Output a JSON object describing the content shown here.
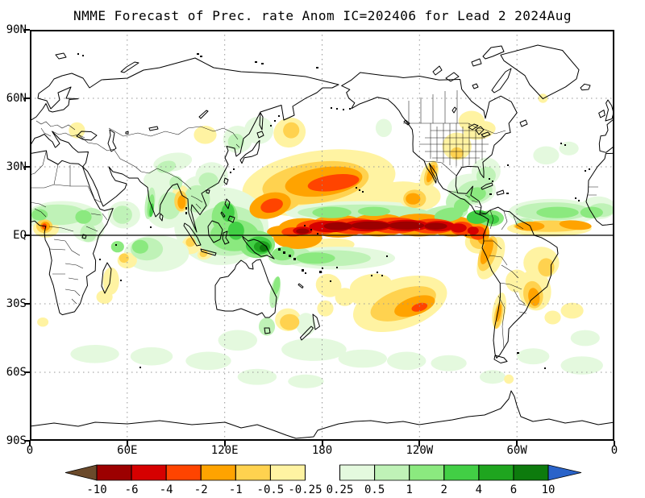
{
  "title": "NMME Forecast of Prec. rate Anom IC=202406 for Lead 2 2024Aug",
  "axes": {
    "lat_labels": [
      "90N",
      "60N",
      "30N",
      "EQ",
      "30S",
      "60S",
      "90S"
    ],
    "lon_labels": [
      "0",
      "60E",
      "120E",
      "180",
      "120W",
      "60W",
      "0"
    ]
  },
  "palette": {
    "y1": "#FFF3A2",
    "y2": "#FFD24F",
    "o1": "#FFA300",
    "o2": "#FF4400",
    "r1": "#D60000",
    "r2": "#9C0000",
    "g1": "#E4F9DE",
    "g2": "#BFF2B7",
    "g3": "#8BE97F",
    "g4": "#42CF45",
    "g5": "#1FA51F",
    "g6": "#0D7B0D"
  },
  "colorbar": {
    "tick_labels": [
      "-10",
      "-6",
      "-4",
      "-2",
      "-1",
      "-0.5",
      "-0.25",
      "0.25",
      "0.5",
      "1",
      "2",
      "4",
      "6",
      "10"
    ],
    "segment_colors": [
      "#9C0000",
      "#D60000",
      "#FF4400",
      "#FFA300",
      "#FFD24F",
      "#FFF3A2",
      "#FFFFFF",
      "#E4F9DE",
      "#BFF2B7",
      "#8BE97F",
      "#42CF45",
      "#1FA51F",
      "#0D7B0D"
    ],
    "left_arrow_color": "#6B4A2B",
    "right_arrow_color": "#2A63C9"
  },
  "chart_data": {
    "type": "heatmap",
    "title": "NMME Forecast of Prec. rate Anom IC=202406 for Lead 2 2024Aug",
    "variable": "Prec. rate Anom",
    "initial_condition": "202406",
    "lead": "2",
    "valid": "2024Aug",
    "projection": "equirectangular, longitude 0E to 360E (Pacific centered), latitude 90N to 90S",
    "x_ticks": [
      "0",
      "60E",
      "120E",
      "180",
      "120W",
      "60W",
      "0"
    ],
    "y_ticks": [
      "90N",
      "60N",
      "30N",
      "EQ",
      "30S",
      "60S",
      "90S"
    ],
    "levels": [
      -10,
      -6,
      -4,
      -2,
      -1,
      -0.5,
      -0.25,
      0.25,
      0.5,
      1,
      2,
      4,
      6,
      10
    ],
    "anomaly_features": [
      [
        "y1",
        178,
        23,
        95,
        28,
        -8
      ],
      [
        "y1",
        222,
        16,
        45,
        14,
        -12
      ],
      [
        "y2",
        176,
        23,
        66,
        18,
        -8
      ],
      [
        "y2",
        155,
        16,
        30,
        12,
        -20
      ],
      [
        "o1",
        181,
        23.5,
        48,
        12.5,
        -8
      ],
      [
        "o2",
        187,
        23,
        32,
        7,
        -8
      ],
      [
        "o1",
        148,
        13,
        26,
        11,
        -15
      ],
      [
        "o2",
        149,
        13,
        14,
        6,
        -15
      ],
      [
        "y1",
        160,
        45,
        20,
        13,
        -20
      ],
      [
        "y2",
        161,
        46,
        10,
        7,
        -20
      ],
      [
        "o1",
        155,
        1.5,
        18,
        5.5,
        0
      ],
      [
        "o1",
        165,
        -1,
        30,
        10,
        0
      ],
      [
        "o1",
        168,
        3,
        30,
        9,
        0
      ],
      [
        "o1",
        190,
        4,
        34,
        10,
        0
      ],
      [
        "o1",
        215,
        4.5,
        36,
        10,
        0
      ],
      [
        "o1",
        240,
        4.5,
        36,
        10,
        0
      ],
      [
        "o1",
        260,
        4,
        28,
        9,
        0
      ],
      [
        "o1",
        273,
        2.5,
        16,
        8,
        0
      ],
      [
        "o2",
        162,
        1.5,
        14,
        4,
        0
      ],
      [
        "o2",
        177,
        3.5,
        26,
        6.5,
        0
      ],
      [
        "o2",
        200,
        4,
        32,
        7,
        0
      ],
      [
        "o2",
        225,
        4.3,
        32,
        7,
        0
      ],
      [
        "o2",
        248,
        4,
        28,
        6.5,
        0
      ],
      [
        "o2",
        266,
        3,
        14,
        6,
        0
      ],
      [
        "r1",
        168,
        2,
        12,
        3.5,
        0
      ],
      [
        "r1",
        185,
        3.8,
        26,
        5,
        0
      ],
      [
        "r1",
        208,
        4.2,
        30,
        5,
        0
      ],
      [
        "r1",
        232,
        4.3,
        28,
        5,
        0
      ],
      [
        "r1",
        252,
        4,
        20,
        4.5,
        0
      ],
      [
        "r1",
        264,
        3.2,
        10,
        4,
        0
      ],
      [
        "r2",
        168,
        1.8,
        8,
        2.4,
        0
      ],
      [
        "r2",
        190,
        4,
        18,
        3.4,
        0
      ],
      [
        "r2",
        210,
        4.3,
        24,
        3.6,
        0
      ],
      [
        "r2",
        232,
        4.3,
        22,
        3.6,
        0
      ],
      [
        "r2",
        250,
        4,
        14,
        3,
        0
      ],
      [
        "o2",
        276,
        1,
        10,
        6,
        0
      ],
      [
        "o1",
        279,
        1,
        8,
        10,
        0
      ],
      [
        "r1",
        273,
        2,
        7,
        3.5,
        0
      ],
      [
        "y2",
        277,
        -2,
        12,
        8,
        0
      ],
      [
        "y1",
        276,
        -3,
        16,
        10,
        0
      ],
      [
        "y1",
        182,
        -5,
        36,
        7,
        -5
      ],
      [
        "y1",
        284,
        -10,
        14,
        20,
        25
      ],
      [
        "y2",
        282,
        -8,
        10,
        16,
        20
      ],
      [
        "o1",
        281.5,
        -7,
        6,
        12,
        20
      ],
      [
        "g1",
        205,
        10,
        95,
        10,
        0
      ],
      [
        "g2",
        205,
        10,
        80,
        7,
        0
      ],
      [
        "g3",
        186,
        10,
        24,
        5,
        0
      ],
      [
        "g3",
        212,
        10.5,
        20,
        4,
        0
      ],
      [
        "g2",
        255,
        9,
        30,
        8,
        -10
      ],
      [
        "g3",
        258,
        9,
        18,
        6,
        -10
      ],
      [
        "g4",
        276,
        8,
        14,
        6,
        -5
      ],
      [
        "g3",
        284,
        7.5,
        16,
        7,
        0
      ],
      [
        "g4",
        285,
        7,
        8,
        4,
        0
      ],
      [
        "g2",
        264,
        15,
        16,
        10,
        -30
      ],
      [
        "g3",
        266,
        13,
        10,
        6,
        -30
      ],
      [
        "g1",
        272,
        20,
        30,
        14,
        0
      ],
      [
        "g2",
        274,
        19,
        22,
        10,
        -10
      ],
      [
        "g3",
        275,
        18,
        12,
        6,
        -10
      ],
      [
        "g1",
        281,
        28,
        18,
        12,
        -20
      ],
      [
        "g2",
        281,
        26,
        12,
        8,
        -20
      ],
      [
        "y1",
        240,
        17,
        26,
        12,
        0
      ],
      [
        "y2",
        237,
        16,
        14,
        8,
        0
      ],
      [
        "o1",
        236,
        16,
        9,
        5,
        0
      ],
      [
        "y1",
        246,
        26,
        10,
        14,
        20
      ],
      [
        "y2",
        247,
        27,
        7,
        11,
        20
      ],
      [
        "o1",
        247,
        27,
        4,
        8,
        20
      ],
      [
        "g1",
        190,
        -10,
        70,
        10,
        0
      ],
      [
        "g2",
        186,
        -10,
        48,
        7,
        0
      ],
      [
        "g3",
        176,
        -10,
        24,
        5,
        0
      ],
      [
        "g2",
        160,
        -9,
        26,
        8,
        -5
      ],
      [
        "g3",
        156,
        -8,
        14,
        6,
        -5
      ],
      [
        "y1",
        228,
        -30,
        60,
        22,
        -18
      ],
      [
        "y2",
        230,
        -30,
        42,
        13,
        -18
      ],
      [
        "o1",
        237,
        -31,
        26,
        8,
        -18
      ],
      [
        "o2",
        240,
        -31.5,
        10,
        3.5,
        -15
      ],
      [
        "y1",
        210,
        -22,
        26,
        10,
        -10
      ],
      [
        "y1",
        184,
        -22,
        16,
        10,
        20
      ],
      [
        "y1",
        194,
        -27,
        12,
        8,
        0
      ],
      [
        "y1",
        205,
        -25,
        18,
        10,
        -20
      ],
      [
        "y1",
        182,
        -32,
        10,
        7,
        0
      ],
      [
        "y2",
        160,
        -38,
        12,
        7,
        0
      ],
      [
        "y1",
        159,
        -37,
        16,
        10,
        0
      ],
      [
        "g1",
        128,
        -46,
        24,
        9,
        0
      ],
      [
        "g1",
        175,
        -50,
        40,
        10,
        0
      ],
      [
        "g1",
        205,
        -54,
        30,
        8,
        0
      ],
      [
        "g1",
        232,
        -55,
        24,
        8,
        0
      ],
      [
        "g1",
        258,
        -56,
        22,
        7,
        0
      ],
      [
        "g1",
        285,
        -62,
        16,
        6,
        0
      ],
      [
        "y1",
        295,
        -63,
        6,
        4,
        0
      ],
      [
        "g1",
        310,
        -53,
        20,
        7,
        0
      ],
      [
        "g1",
        340,
        -57,
        26,
        8,
        0
      ],
      [
        "g1",
        342,
        -45,
        18,
        7,
        0
      ],
      [
        "g1",
        40,
        -52,
        30,
        8,
        0
      ],
      [
        "g1",
        75,
        -53,
        26,
        8,
        0
      ],
      [
        "g1",
        110,
        -55,
        28,
        8,
        0
      ],
      [
        "g1",
        140,
        -62,
        24,
        7,
        0
      ],
      [
        "g1",
        170,
        -64,
        22,
        6,
        0
      ],
      [
        "g1",
        170,
        -39,
        12,
        10,
        0
      ],
      [
        "g2",
        146,
        -40,
        10,
        8,
        0
      ],
      [
        "g2",
        151,
        -25,
        6,
        14,
        10
      ],
      [
        "g3",
        152,
        -22,
        4,
        8,
        10
      ],
      [
        "g1",
        118,
        4,
        58,
        34,
        0
      ],
      [
        "g2",
        122,
        2,
        44,
        22,
        0
      ],
      [
        "g3",
        126,
        0,
        30,
        14,
        0
      ],
      [
        "g3",
        120,
        8,
        16,
        14,
        0
      ],
      [
        "g4",
        122,
        10,
        8,
        8,
        0
      ],
      [
        "g4",
        127,
        2,
        10,
        8,
        0
      ],
      [
        "g3",
        140,
        -4,
        22,
        12,
        0
      ],
      [
        "g4",
        141,
        -4.5,
        16,
        8,
        0
      ],
      [
        "g5",
        143,
        -5,
        10,
        5,
        0
      ],
      [
        "g6",
        144,
        -5.5,
        5,
        3,
        0
      ],
      [
        "g1",
        104,
        18,
        22,
        16,
        0
      ],
      [
        "g2",
        103,
        16,
        16,
        12,
        0
      ],
      [
        "g1",
        112,
        26,
        20,
        12,
        0
      ],
      [
        "g2",
        110,
        24,
        12,
        7,
        0
      ],
      [
        "g1",
        128,
        42,
        18,
        12,
        0
      ],
      [
        "g2",
        127,
        41,
        10,
        7,
        0
      ],
      [
        "g1",
        141,
        46,
        18,
        12,
        0
      ],
      [
        "g1",
        84,
        12,
        26,
        18,
        0
      ],
      [
        "g2",
        86,
        13,
        14,
        12,
        0
      ],
      [
        "g2",
        74,
        14,
        6,
        14,
        8
      ],
      [
        "g3",
        74.5,
        13,
        4,
        10,
        8
      ],
      [
        "g4",
        75,
        11,
        2.5,
        6,
        8
      ],
      [
        "g1",
        80,
        24,
        20,
        10,
        0
      ],
      [
        "g2",
        90,
        23,
        8,
        6,
        0
      ],
      [
        "g1",
        88,
        32,
        24,
        8,
        -10
      ],
      [
        "g2",
        84,
        30,
        12,
        5,
        -15
      ],
      [
        "y1",
        93,
        16,
        12,
        12,
        0
      ],
      [
        "y2",
        93,
        15,
        8,
        9,
        0
      ],
      [
        "o1",
        93.5,
        14.5,
        5,
        6,
        0
      ],
      [
        "y1",
        100,
        -4,
        14,
        8,
        -30
      ],
      [
        "y2",
        99,
        -3,
        6,
        4,
        -30
      ],
      [
        "y1",
        108,
        -8,
        10,
        5,
        -20
      ],
      [
        "y2",
        107,
        -8,
        5,
        3,
        -20
      ],
      [
        "g1",
        78,
        -8,
        40,
        16,
        0
      ],
      [
        "g2",
        72,
        -6,
        20,
        10,
        0
      ],
      [
        "g3",
        68,
        -5,
        10,
        6,
        0
      ],
      [
        "y1",
        60,
        -11,
        12,
        7,
        0
      ],
      [
        "y2",
        58,
        -10,
        6,
        4,
        0
      ],
      [
        "g3",
        54,
        -5,
        8,
        5,
        0
      ],
      [
        "g2",
        57,
        9,
        12,
        8,
        0
      ],
      [
        "g1",
        58,
        9,
        20,
        12,
        0
      ],
      [
        "y1",
        50,
        -20,
        10,
        12,
        0
      ],
      [
        "y1",
        46,
        -27,
        10,
        6,
        0
      ],
      [
        "g1",
        20,
        8,
        46,
        14,
        0
      ],
      [
        "g2",
        17,
        9,
        36,
        9,
        0
      ],
      [
        "g3",
        6,
        9,
        10,
        5,
        0
      ],
      [
        "g3",
        33,
        8,
        10,
        6,
        0
      ],
      [
        "g2",
        38,
        8,
        14,
        8,
        0
      ],
      [
        "g1",
        36,
        3,
        20,
        12,
        0
      ],
      [
        "g2",
        36,
        1,
        10,
        8,
        0
      ],
      [
        "y1",
        10,
        3,
        16,
        8,
        0
      ],
      [
        "y2",
        9,
        4,
        10,
        6,
        0
      ],
      [
        "o1",
        9.5,
        4,
        6,
        4,
        0
      ],
      [
        "o2",
        9,
        4,
        3,
        2.5,
        0
      ],
      [
        "g1",
        350,
        12,
        22,
        10,
        0
      ],
      [
        "g2",
        352,
        11,
        16,
        6,
        0
      ],
      [
        "y1",
        8,
        -38,
        7,
        4,
        0
      ],
      [
        "g1",
        322,
        10,
        55,
        12,
        0
      ],
      [
        "g2",
        322,
        10.5,
        46,
        8,
        0
      ],
      [
        "g3",
        325,
        10,
        26,
        5,
        0
      ],
      [
        "g3",
        346,
        10,
        14,
        5,
        0
      ],
      [
        "y1",
        320,
        3,
        52,
        7,
        0
      ],
      [
        "y2",
        320,
        4,
        44,
        5,
        0
      ],
      [
        "o1",
        308,
        4,
        18,
        4,
        0
      ],
      [
        "o1",
        336,
        4.5,
        20,
        4,
        5
      ],
      [
        "g2",
        305,
        5,
        12,
        5,
        0
      ],
      [
        "g1",
        318,
        35,
        16,
        8,
        0
      ],
      [
        "g1",
        332,
        38,
        12,
        6,
        0
      ],
      [
        "y1",
        334,
        -33,
        14,
        7,
        0
      ],
      [
        "y1",
        322,
        -36,
        10,
        6,
        0
      ],
      [
        "y1",
        315,
        -12,
        22,
        14,
        0
      ],
      [
        "y2",
        318,
        -14,
        10,
        8,
        0
      ],
      [
        "y1",
        311,
        -24,
        20,
        18,
        -10
      ],
      [
        "y2",
        310,
        -26,
        12,
        12,
        -10
      ],
      [
        "o1",
        310.5,
        -27,
        7,
        8,
        -10
      ],
      [
        "y1",
        289,
        -33,
        8,
        16,
        10
      ],
      [
        "y2",
        288.5,
        -35,
        5,
        12,
        10
      ],
      [
        "o1",
        288.7,
        -34,
        3,
        8,
        10
      ],
      [
        "y1",
        300,
        -20,
        14,
        10,
        -10
      ],
      [
        "y1",
        263,
        39,
        18,
        12,
        0
      ],
      [
        "y2",
        263,
        36,
        8,
        5,
        0
      ],
      [
        "y1",
        277,
        46,
        20,
        8,
        -10
      ],
      [
        "y1",
        272,
        50,
        16,
        9,
        0
      ],
      [
        "y1",
        316,
        60,
        6,
        4,
        0
      ],
      [
        "g1",
        218,
        47,
        10,
        8,
        0
      ],
      [
        "y1",
        29,
        46,
        10,
        7,
        0
      ],
      [
        "y1",
        108,
        44,
        14,
        8,
        0
      ]
    ]
  }
}
